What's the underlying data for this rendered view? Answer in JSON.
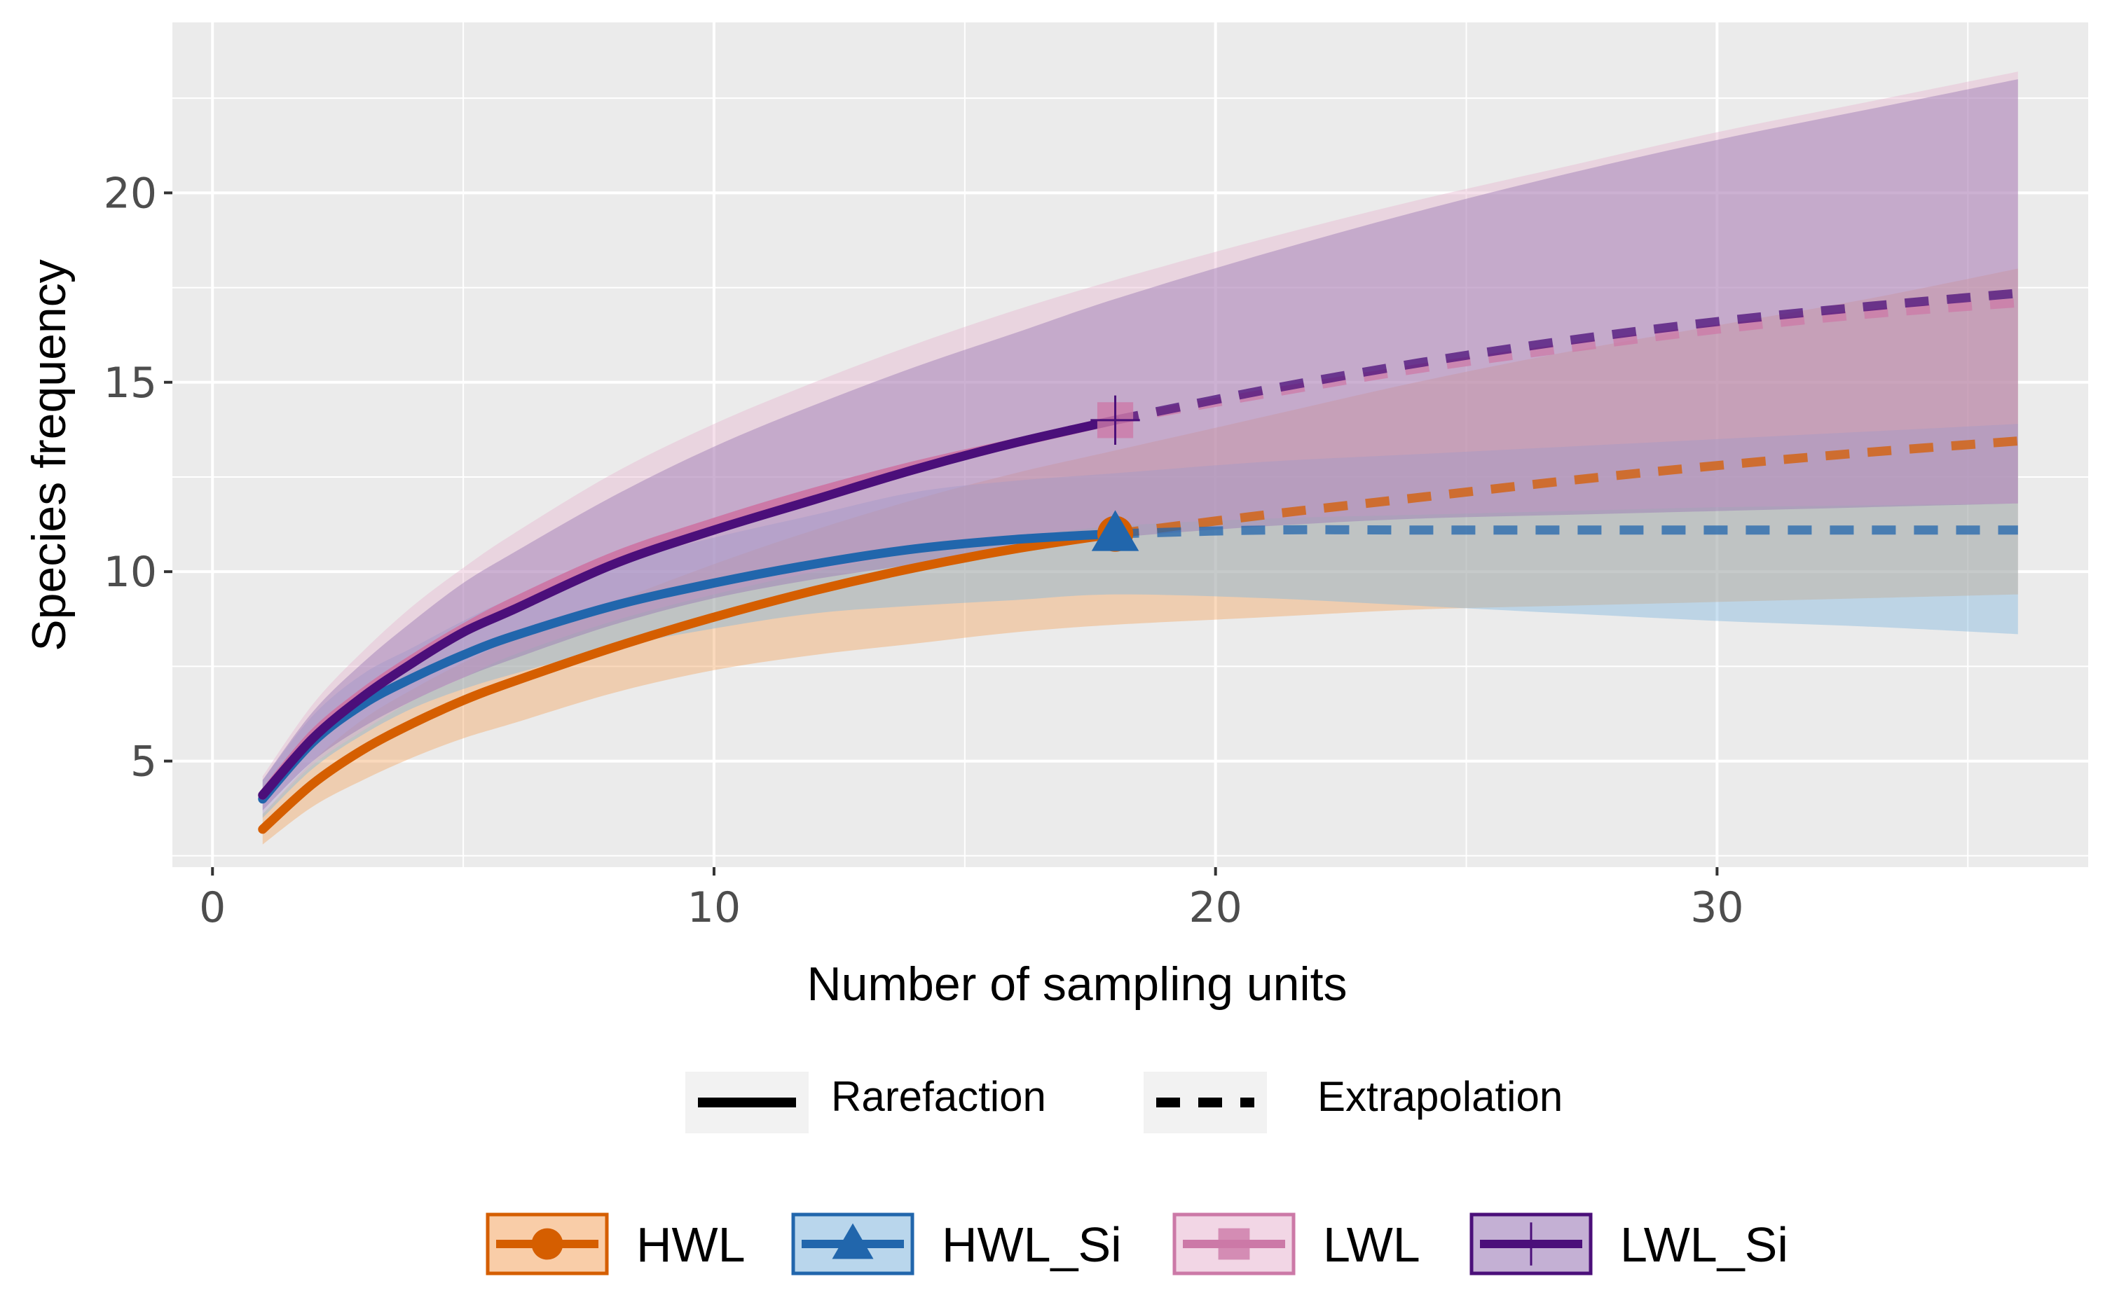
{
  "chart_data": {
    "type": "line",
    "title": "",
    "xlabel": "Number of sampling units",
    "ylabel": "Species frequency",
    "xlim": [
      -0.8,
      37.4
    ],
    "ylim": [
      2.2,
      24.5
    ],
    "x_ticks": [
      0,
      10,
      20,
      30
    ],
    "y_ticks": [
      5,
      10,
      15,
      20
    ],
    "x_tick_labels": [
      "0",
      "10",
      "20",
      "30"
    ],
    "y_tick_labels": [
      "5",
      "10",
      "15",
      "20"
    ],
    "grid": true,
    "line_type_legend": [
      {
        "label": "Rarefaction",
        "style": "solid"
      },
      {
        "label": "Extrapolation",
        "style": "dashed"
      }
    ],
    "series": [
      {
        "name": "HWL",
        "color": "#D55E00",
        "band_color": "#F4A460",
        "marker": "circle",
        "observed_x": 18,
        "observed_y": 11.0,
        "x": [
          1,
          2,
          3,
          4,
          5,
          6,
          8,
          10,
          12,
          14,
          16,
          18,
          21,
          24,
          27,
          30,
          33,
          36
        ],
        "y": [
          3.2,
          4.4,
          5.3,
          6.0,
          6.6,
          7.1,
          8.0,
          8.8,
          9.5,
          10.1,
          10.6,
          11.0,
          11.5,
          11.95,
          12.4,
          12.8,
          13.15,
          13.45
        ],
        "lower": [
          2.8,
          3.8,
          4.5,
          5.1,
          5.6,
          6.0,
          6.8,
          7.4,
          7.8,
          8.1,
          8.4,
          8.6,
          8.8,
          9.0,
          9.1,
          9.2,
          9.3,
          9.4
        ],
        "upper": [
          3.6,
          5.0,
          6.1,
          6.9,
          7.6,
          8.2,
          9.2,
          10.2,
          11.1,
          11.9,
          12.6,
          13.2,
          14.1,
          15.0,
          15.8,
          16.5,
          17.2,
          18.0
        ]
      },
      {
        "name": "HWL_Si",
        "color": "#2166AC",
        "band_color": "#7FB5DD",
        "marker": "triangle",
        "observed_x": 18,
        "observed_y": 11.0,
        "x": [
          1,
          2,
          3,
          4,
          5,
          6,
          8,
          10,
          12,
          14,
          16,
          18,
          21,
          24,
          27,
          30,
          33,
          36
        ],
        "y": [
          4.0,
          5.5,
          6.5,
          7.2,
          7.8,
          8.3,
          9.1,
          9.7,
          10.2,
          10.6,
          10.85,
          11.0,
          11.1,
          11.1,
          11.1,
          11.1,
          11.1,
          11.1
        ],
        "lower": [
          3.5,
          4.8,
          5.7,
          6.4,
          6.9,
          7.3,
          8.0,
          8.5,
          8.9,
          9.1,
          9.25,
          9.4,
          9.3,
          9.1,
          8.9,
          8.7,
          8.55,
          8.35
        ],
        "upper": [
          4.5,
          6.2,
          7.3,
          8.0,
          8.7,
          9.3,
          10.2,
          10.9,
          11.5,
          12.1,
          12.4,
          12.6,
          12.9,
          13.1,
          13.3,
          13.5,
          13.7,
          13.9
        ]
      },
      {
        "name": "LWL",
        "color": "#CC79A7",
        "band_color": "#E8B4D0",
        "marker": "square",
        "observed_x": 18,
        "observed_y": 14.0,
        "x": [
          1,
          2,
          3,
          4,
          5,
          6,
          8,
          10,
          12,
          14,
          16,
          18,
          21,
          24,
          27,
          30,
          33,
          36
        ],
        "y": [
          4.1,
          5.7,
          6.8,
          7.7,
          8.5,
          9.2,
          10.4,
          11.3,
          12.1,
          12.8,
          13.4,
          14.0,
          14.7,
          15.35,
          15.9,
          16.4,
          16.8,
          17.1
        ],
        "lower": [
          3.6,
          4.9,
          5.8,
          6.6,
          7.2,
          7.8,
          8.7,
          9.4,
          10.0,
          10.5,
          10.9,
          11.2,
          11.4,
          11.5,
          11.6,
          11.7,
          11.75,
          11.8
        ],
        "upper": [
          4.6,
          6.5,
          7.9,
          9.1,
          10.1,
          11.0,
          12.6,
          13.9,
          15.0,
          16.0,
          16.9,
          17.7,
          18.8,
          19.8,
          20.7,
          21.6,
          22.4,
          23.2
        ]
      },
      {
        "name": "LWL_Si",
        "color": "#4B0F7A",
        "band_color": "#9370B0",
        "marker": "plus",
        "observed_x": 18,
        "observed_y": 14.0,
        "x": [
          1,
          2,
          3,
          4,
          5,
          6,
          8,
          10,
          12,
          14,
          16,
          18,
          21,
          24,
          27,
          30,
          33,
          36
        ],
        "y": [
          4.1,
          5.6,
          6.7,
          7.6,
          8.4,
          9.0,
          10.2,
          11.1,
          11.9,
          12.7,
          13.4,
          14.0,
          14.8,
          15.5,
          16.1,
          16.6,
          17.0,
          17.35
        ],
        "lower": [
          3.7,
          5.0,
          5.9,
          6.6,
          7.2,
          7.7,
          8.6,
          9.3,
          9.8,
          10.2,
          10.6,
          10.9,
          11.2,
          11.4,
          11.5,
          11.6,
          11.7,
          11.8
        ],
        "upper": [
          4.5,
          6.3,
          7.6,
          8.7,
          9.7,
          10.5,
          12.0,
          13.3,
          14.4,
          15.4,
          16.3,
          17.2,
          18.4,
          19.5,
          20.5,
          21.4,
          22.2,
          23.0
        ]
      }
    ]
  }
}
